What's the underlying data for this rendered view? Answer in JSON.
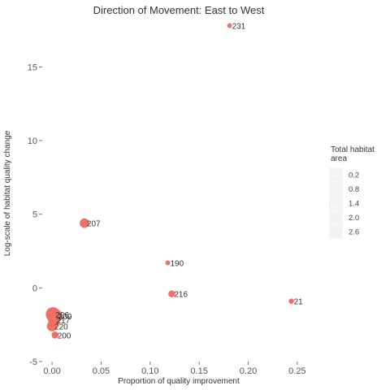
{
  "chart_data": {
    "type": "scatter",
    "title": "Direction of Movement: East to West",
    "xlabel": "Proportion of quality improvement",
    "ylabel": "Log-scale of habitat quality change",
    "xlim": [
      -0.01,
      0.27
    ],
    "ylim": [
      -5,
      18
    ],
    "x_ticks": [
      0.0,
      0.05,
      0.1,
      0.15,
      0.2,
      0.25
    ],
    "x_tick_labels": [
      "0.00",
      "0.05",
      "0.10",
      "0.15",
      "0.20",
      "0.25"
    ],
    "y_ticks": [
      -5,
      0,
      5,
      10,
      15
    ],
    "y_tick_labels": [
      "-5",
      "0",
      "5",
      "10",
      "15"
    ],
    "grid": false,
    "point_color": "#f07067",
    "legend": {
      "title": "Total habitat area",
      "placement": "right",
      "sizes": [
        0.2,
        0.8,
        1.4,
        2.0,
        2.6
      ],
      "labels": [
        "0.2",
        "0.8",
        "1.4",
        "2.0",
        "2.6"
      ]
    },
    "points": [
      {
        "label": "231",
        "x": 0.181,
        "y": 17.8,
        "size": 0.3
      },
      {
        "label": "207",
        "x": 0.033,
        "y": 4.4,
        "size": 1.4
      },
      {
        "label": "190",
        "x": 0.118,
        "y": 1.7,
        "size": 0.3
      },
      {
        "label": "216",
        "x": 0.122,
        "y": -0.4,
        "size": 0.8
      },
      {
        "label": "21",
        "x": 0.244,
        "y": -0.9,
        "size": 0.4
      },
      {
        "label": "206",
        "x": 0.001,
        "y": -1.8,
        "size": 2.6
      },
      {
        "label": "209",
        "x": 0.004,
        "y": -1.9,
        "size": 2.2
      },
      {
        "label": "217",
        "x": 0.002,
        "y": -2.2,
        "size": 2.0
      },
      {
        "label": "220",
        "x": 0.0,
        "y": -2.6,
        "size": 1.6
      },
      {
        "label": "200",
        "x": 0.003,
        "y": -3.2,
        "size": 0.8
      }
    ]
  }
}
